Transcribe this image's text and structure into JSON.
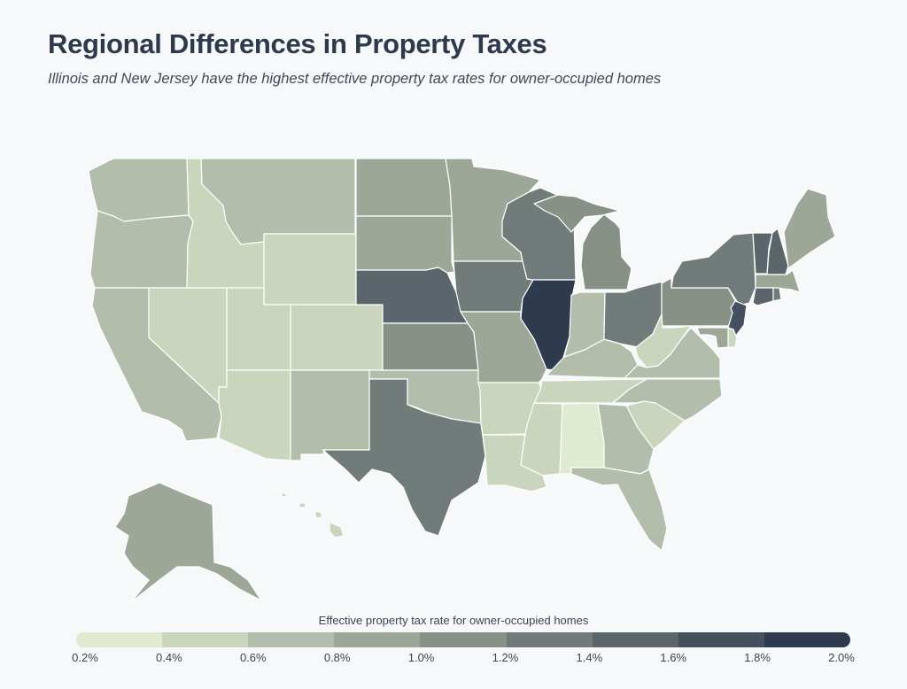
{
  "header": {
    "title": "Regional Differences in Property Taxes",
    "subtitle": "Illinois and New Jersey have the highest effective property tax rates for owner-occupied homes"
  },
  "legend": {
    "title": "Effective property tax rate for owner-occupied homes",
    "ticks": [
      "0.2%",
      "0.4%",
      "0.6%",
      "0.8%",
      "1.0%",
      "1.2%",
      "1.4%",
      "1.6%",
      "1.8%",
      "2.0%"
    ],
    "bin_colors": [
      "#e0ead0",
      "#c9d5bd",
      "#b2bdab",
      "#9ca797",
      "#879186",
      "#717c7a",
      "#5b666c",
      "#44505e",
      "#2e3a4d"
    ],
    "stroke_color": "#ffffff"
  },
  "chart_data": {
    "type": "choropleth",
    "value_unit": "%",
    "value_range": [
      0.2,
      2.0
    ],
    "bins": [
      0.2,
      0.4,
      0.6,
      0.8,
      1.0,
      1.2,
      1.4,
      1.6,
      1.8,
      2.0
    ],
    "region_rates": {
      "WA": 0.7,
      "OR": 0.7,
      "CA": 0.7,
      "ID": 0.5,
      "MT": 0.7,
      "WY": 0.5,
      "NV": 0.5,
      "UT": 0.5,
      "CO": 0.5,
      "AZ": 0.5,
      "NM": 0.7,
      "ND": 0.9,
      "SD": 0.9,
      "NE": 1.5,
      "KS": 1.1,
      "OK": 0.7,
      "TX": 1.3,
      "MN": 0.9,
      "IA": 1.3,
      "MO": 0.9,
      "AR": 0.5,
      "LA": 0.5,
      "WI": 1.3,
      "IL": 1.9,
      "MI": 1.1,
      "IN": 0.7,
      "OH": 1.3,
      "KY": 0.7,
      "TN": 0.5,
      "MS": 0.5,
      "AL": 0.3,
      "GA": 0.7,
      "FL": 0.7,
      "SC": 0.5,
      "NC": 0.7,
      "VA": 0.7,
      "WV": 0.5,
      "PA": 1.1,
      "NY": 1.3,
      "VT": 1.5,
      "NH": 1.5,
      "ME": 0.9,
      "MA": 0.9,
      "CT": 1.5,
      "RI": 1.3,
      "NJ": 1.7,
      "DE": 0.5,
      "MD": 0.9,
      "AK": 0.9,
      "HI": 0.5
    }
  }
}
